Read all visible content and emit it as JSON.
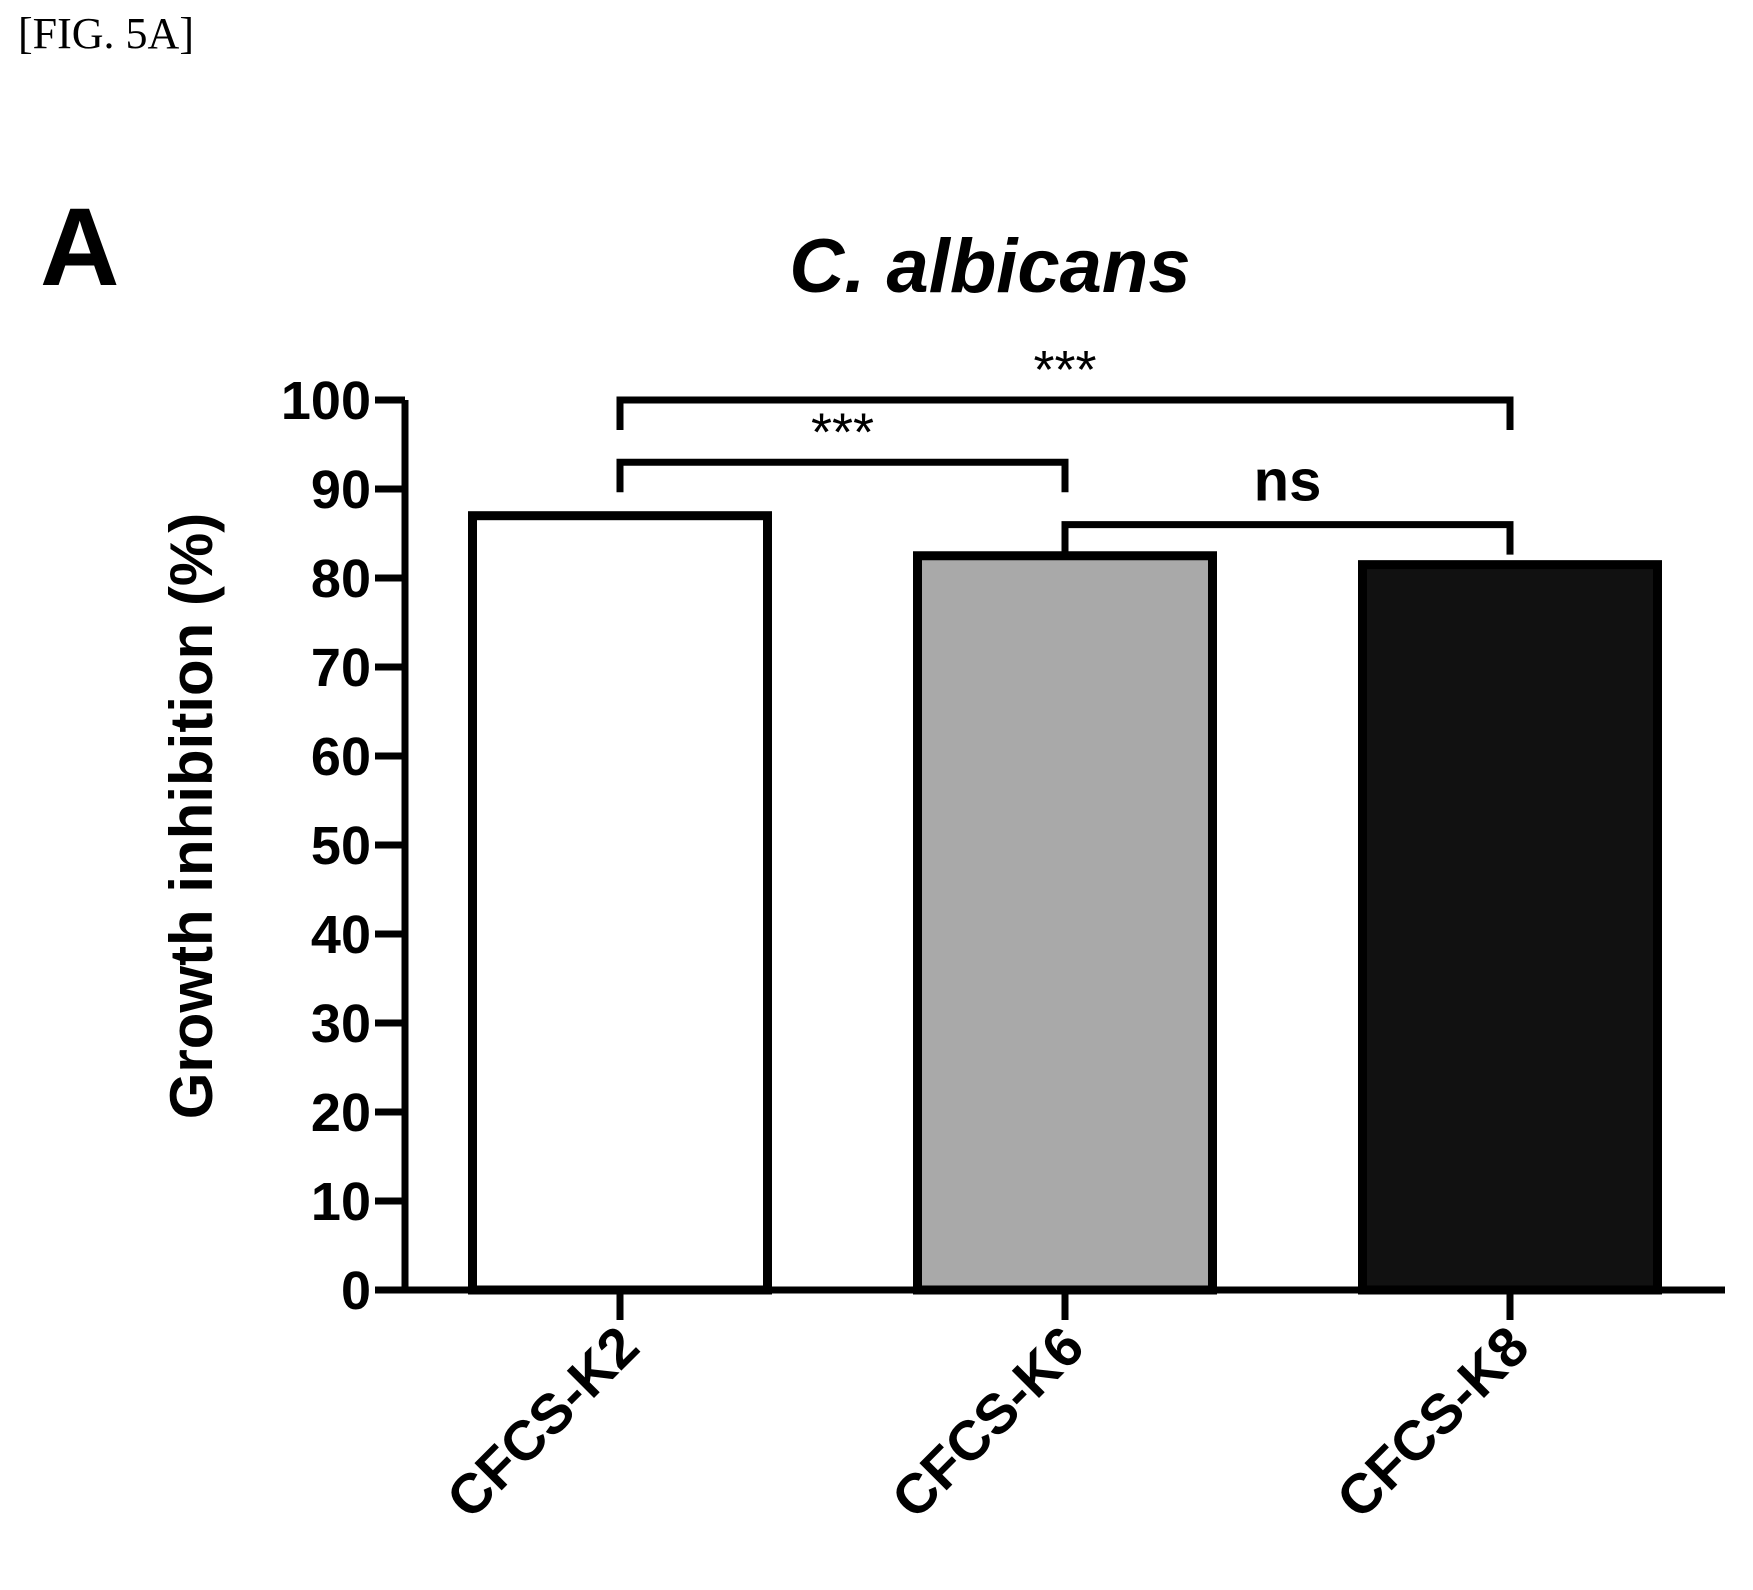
{
  "figure_label": "[FIG. 5A]",
  "panel_letter": "A",
  "chart_data": {
    "type": "bar",
    "title": "C. albicans",
    "xlabel": "",
    "ylabel": "Growth inhibition (%)",
    "ylim": [
      0,
      100
    ],
    "yticks": [
      0,
      10,
      20,
      30,
      40,
      50,
      60,
      70,
      80,
      90,
      100
    ],
    "categories": [
      "CFCS-K2",
      "CFCS-K6",
      "CFCS-K8"
    ],
    "values": [
      87,
      82.5,
      81.5
    ],
    "colors": [
      "#ffffff",
      "#a9a9a9",
      "#111111"
    ],
    "grid": false,
    "significance": [
      {
        "from": 0,
        "to": 2,
        "label": "***",
        "y": 100
      },
      {
        "from": 0,
        "to": 1,
        "label": "***",
        "y": 93
      },
      {
        "from": 1,
        "to": 2,
        "label": "ns",
        "y": 86
      }
    ]
  }
}
